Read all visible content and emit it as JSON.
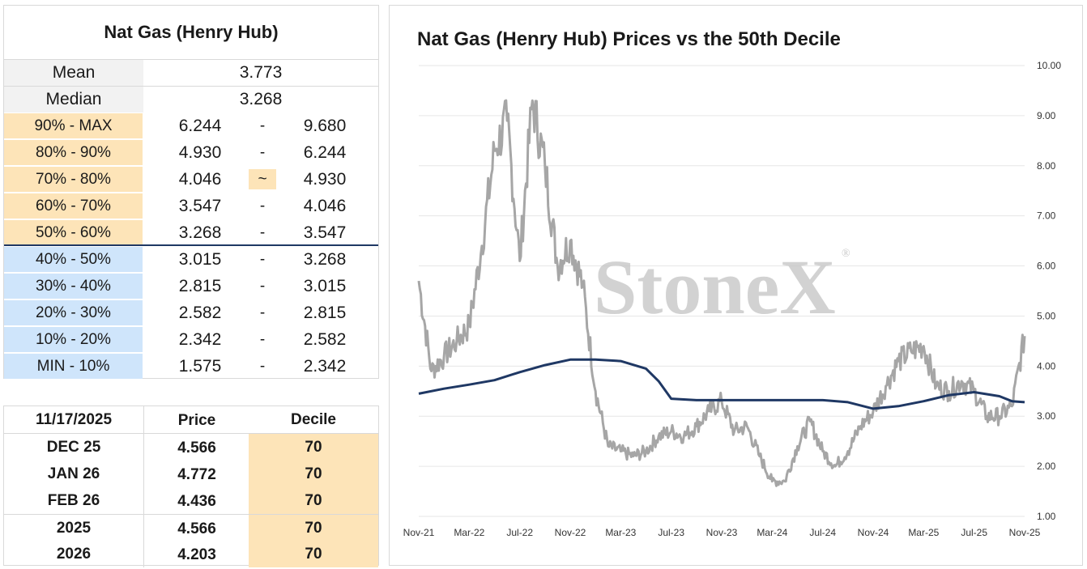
{
  "decile_table": {
    "title": "Nat Gas (Henry Hub)",
    "mean_label": "Mean",
    "mean_value": "3.773",
    "median_label": "Median",
    "median_value": "3.268",
    "rows": [
      {
        "label": "90% - MAX",
        "low": "6.244",
        "sep": "-",
        "high": "9.680",
        "band": "upper"
      },
      {
        "label": "80% - 90%",
        "low": "4.930",
        "sep": "-",
        "high": "6.244",
        "band": "upper"
      },
      {
        "label": "70% - 80%",
        "low": "4.046",
        "sep": "~",
        "high": "4.930",
        "band": "upper",
        "current": true
      },
      {
        "label": "60% - 70%",
        "low": "3.547",
        "sep": "-",
        "high": "4.046",
        "band": "upper"
      },
      {
        "label": "50% - 60%",
        "low": "3.268",
        "sep": "-",
        "high": "3.547",
        "band": "upper"
      },
      {
        "label": "40% - 50%",
        "low": "3.015",
        "sep": "-",
        "high": "3.268",
        "band": "lower"
      },
      {
        "label": "30% - 40%",
        "low": "2.815",
        "sep": "-",
        "high": "3.015",
        "band": "lower"
      },
      {
        "label": "20% - 30%",
        "low": "2.582",
        "sep": "-",
        "high": "2.815",
        "band": "lower"
      },
      {
        "label": "10% - 20%",
        "low": "2.342",
        "sep": "-",
        "high": "2.582",
        "band": "lower"
      },
      {
        "label": "MIN - 10%",
        "low": "1.575",
        "sep": "-",
        "high": "2.342",
        "band": "lower"
      }
    ]
  },
  "price_table": {
    "header": {
      "date": "11/17/2025",
      "price": "Price",
      "decile": "Decile"
    },
    "rows": [
      {
        "name": "DEC 25",
        "price": "4.566",
        "decile": "70"
      },
      {
        "name": "JAN 26",
        "price": "4.772",
        "decile": "70"
      },
      {
        "name": "FEB 26",
        "price": "4.436",
        "decile": "70"
      },
      {
        "name": "2025",
        "price": "4.566",
        "decile": "70"
      },
      {
        "name": "2026",
        "price": "4.203",
        "decile": "70"
      }
    ]
  },
  "colors": {
    "price_series": "#a6a6a6",
    "decile_series": "#1f3864",
    "upper_band": "#fde4b8",
    "lower_band": "#cfe5fb",
    "watermark": "#c8c8c8"
  },
  "watermark": {
    "text": "StoneX",
    "mark": "®"
  },
  "chart_data": {
    "type": "line",
    "title": "Nat Gas (Henry Hub) Prices vs the 50th Decile",
    "xlabel": "",
    "ylabel": "",
    "ylim": [
      1.0,
      10.0
    ],
    "yticks": [
      "1.00",
      "2.00",
      "3.00",
      "4.00",
      "5.00",
      "6.00",
      "7.00",
      "8.00",
      "9.00",
      "10.00"
    ],
    "y_axis_side": "right",
    "x_tick_labels": [
      "Nov-21",
      "Mar-22",
      "Jul-22",
      "Nov-22",
      "Mar-23",
      "Jul-23",
      "Nov-23",
      "Mar-24",
      "Jul-24",
      "Nov-24",
      "Mar-25",
      "Jul-25",
      "Nov-25"
    ],
    "grid": "horizontal",
    "legend": "none",
    "series": [
      {
        "key": "price",
        "x": [
          "Nov-21",
          "Dec-21",
          "Jan-22",
          "Feb-22",
          "Mar-22",
          "Apr-22",
          "May-22",
          "Jun-22",
          "Jul-22",
          "Aug-22",
          "Sep-22",
          "Oct-22",
          "Nov-22",
          "Dec-22",
          "Jan-23",
          "Feb-23",
          "Mar-23",
          "Apr-23",
          "May-23",
          "Jun-23",
          "Jul-23",
          "Aug-23",
          "Sep-23",
          "Oct-23",
          "Nov-23",
          "Dec-23",
          "Jan-24",
          "Feb-24",
          "Mar-24",
          "Apr-24",
          "May-24",
          "Jun-24",
          "Jul-24",
          "Aug-24",
          "Sep-24",
          "Oct-24",
          "Nov-24",
          "Dec-24",
          "Jan-25",
          "Feb-25",
          "Mar-25",
          "Apr-25",
          "May-25",
          "Jun-25",
          "Jul-25",
          "Aug-25",
          "Sep-25",
          "Oct-25",
          "Nov-25"
        ],
        "values": [
          5.7,
          3.9,
          4.2,
          4.5,
          4.8,
          6.4,
          8.3,
          8.9,
          6.1,
          9.3,
          8.0,
          6.0,
          6.5,
          5.6,
          3.5,
          2.4,
          2.3,
          2.2,
          2.3,
          2.6,
          2.7,
          2.6,
          2.8,
          3.1,
          3.3,
          2.7,
          2.8,
          2.2,
          1.7,
          1.7,
          2.4,
          2.9,
          2.3,
          2.0,
          2.3,
          2.8,
          3.1,
          3.6,
          4.1,
          4.3,
          4.4,
          3.6,
          3.5,
          3.7,
          3.5,
          3.0,
          3.0,
          3.2,
          4.6
        ]
      },
      {
        "key": "decile_50",
        "x": [
          "Nov-21",
          "Jan-22",
          "Mar-22",
          "May-22",
          "Jul-22",
          "Sep-22",
          "Nov-22",
          "Jan-23",
          "Mar-23",
          "May-23",
          "Jun-23",
          "Jul-23",
          "Sep-23",
          "Nov-23",
          "Jan-24",
          "Mar-24",
          "May-24",
          "Jul-24",
          "Sep-24",
          "Nov-24",
          "Jan-25",
          "Mar-25",
          "May-25",
          "Jul-25",
          "Sep-25",
          "Oct-25",
          "Nov-25"
        ],
        "values": [
          3.45,
          3.55,
          3.63,
          3.72,
          3.88,
          4.02,
          4.13,
          4.13,
          4.1,
          3.95,
          3.7,
          3.35,
          3.32,
          3.32,
          3.32,
          3.32,
          3.32,
          3.32,
          3.28,
          3.15,
          3.2,
          3.3,
          3.42,
          3.48,
          3.4,
          3.3,
          3.28
        ]
      }
    ]
  }
}
